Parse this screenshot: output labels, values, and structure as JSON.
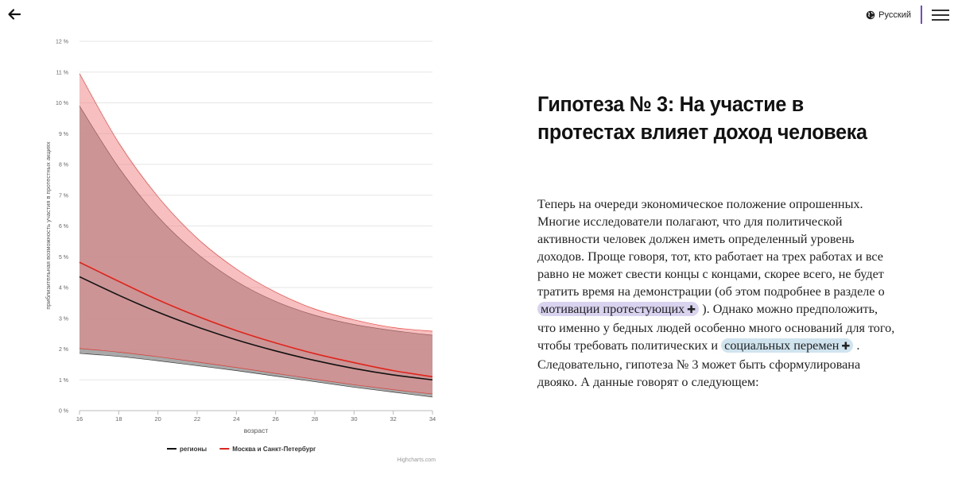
{
  "nav": {
    "back_icon": "arrow-left-icon",
    "language_icon": "globe-icon",
    "language_label": "Русский",
    "menu_icon": "hamburger-menu-icon",
    "accent_color": "#6a4fc7"
  },
  "chart_data": {
    "type": "area",
    "xlabel": "возраст",
    "ylabel": "приблизительная возможность участия в протестных акциях",
    "x": [
      16,
      18,
      20,
      22,
      24,
      26,
      28,
      30,
      32,
      34
    ],
    "x_ticks": [
      "16",
      "18",
      "20",
      "22",
      "24",
      "26",
      "28",
      "30",
      "32",
      "34"
    ],
    "y_ticks": [
      "0 %",
      "1 %",
      "2 %",
      "3 %",
      "4 %",
      "5 %",
      "6 %",
      "7 %",
      "8 %",
      "9 %",
      "10 %",
      "11 %",
      "12 %"
    ],
    "xlim": [
      16,
      34
    ],
    "ylim": [
      0,
      12
    ],
    "grid": true,
    "legend_position": "bottom",
    "credits": "Highcharts.com",
    "series": [
      {
        "name": "регионы",
        "color": "#111111",
        "band_color": "#9a9a9a",
        "values": [
          4.35,
          3.75,
          3.2,
          2.72,
          2.3,
          1.94,
          1.63,
          1.37,
          1.16,
          1.0
        ],
        "lower": [
          1.86,
          1.76,
          1.62,
          1.46,
          1.3,
          1.12,
          0.94,
          0.76,
          0.6,
          0.44
        ],
        "upper": [
          9.9,
          7.9,
          6.3,
          5.1,
          4.2,
          3.55,
          3.1,
          2.8,
          2.6,
          2.45
        ]
      },
      {
        "name": "Москва и Санкт-Петербург",
        "color": "#e0241b",
        "band_color": "#f08080",
        "values": [
          4.82,
          4.2,
          3.6,
          3.07,
          2.6,
          2.2,
          1.85,
          1.56,
          1.3,
          1.1
        ],
        "lower": [
          2.02,
          1.9,
          1.75,
          1.58,
          1.4,
          1.21,
          1.02,
          0.84,
          0.68,
          0.54
        ],
        "upper": [
          10.95,
          8.7,
          6.95,
          5.6,
          4.6,
          3.85,
          3.3,
          2.95,
          2.7,
          2.58
        ]
      }
    ]
  },
  "article": {
    "title": "Гипотеза № 3: На участие в протестах влияет доход человека",
    "p_part1": "Теперь на очереди экономическое положение опрошенных. Многие исследователи полагают, что для политической активности человек должен иметь определенный уровень доходов. Проще говоря, тот, кто работает на трех работах и все равно не может свести концы с концами, скорее всего, не будет тратить время на демонстрации (об этом подробнее в разделе о",
    "link1": "мотивации протестующих",
    "p_part2": "). Однако можно предположить, что именно у бедных людей особенно много оснований для того, чтобы требовать политических и",
    "link2": "социальных перемен",
    "p_part3": ". Следовательно, гипотеза № 3 может быть сформулирована двояко. А данные говорят о следующем:",
    "plus_glyph": "✚",
    "link1_color": "#d9d3f0",
    "link2_color": "#cfe4ee"
  }
}
